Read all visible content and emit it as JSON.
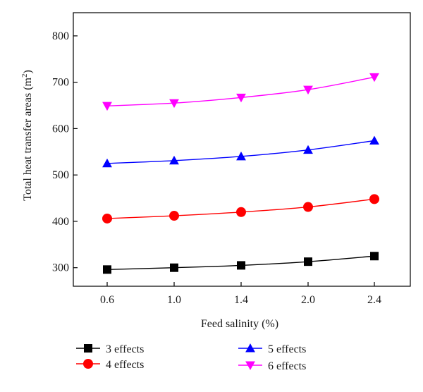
{
  "chart_data": {
    "type": "line",
    "title": "",
    "xlabel": "Feed salinity (%)",
    "ylabel": "Total heat transfer areas (m",
    "ylabel_sup": "2",
    "ylabel_close": ")",
    "x": [
      0.6,
      1.0,
      1.4,
      2.0,
      2.4
    ],
    "x_tick_labels": [
      "0.6",
      "1.0",
      "1.4",
      "2.0",
      "2.4"
    ],
    "y_ticks": [
      300,
      400,
      500,
      600,
      700,
      800
    ],
    "y_tick_labels": [
      "300",
      "400",
      "500",
      "600",
      "700",
      "800"
    ],
    "ylim": [
      260,
      850
    ],
    "grid": false,
    "legend_position": "bottom",
    "series": [
      {
        "name": "3 effects",
        "values": [
          296,
          300,
          305,
          313,
          325
        ],
        "color": "#000000",
        "marker": "square"
      },
      {
        "name": "4 effects",
        "values": [
          406,
          412,
          420,
          431,
          448
        ],
        "color": "#ff0000",
        "marker": "circle"
      },
      {
        "name": "5 effects",
        "values": [
          525,
          531,
          540,
          554,
          574
        ],
        "color": "#0000ff",
        "marker": "triangle-up"
      },
      {
        "name": "6 effects",
        "values": [
          649,
          655,
          667,
          684,
          711
        ],
        "color": "#ff00ff",
        "marker": "triangle-down"
      }
    ]
  }
}
